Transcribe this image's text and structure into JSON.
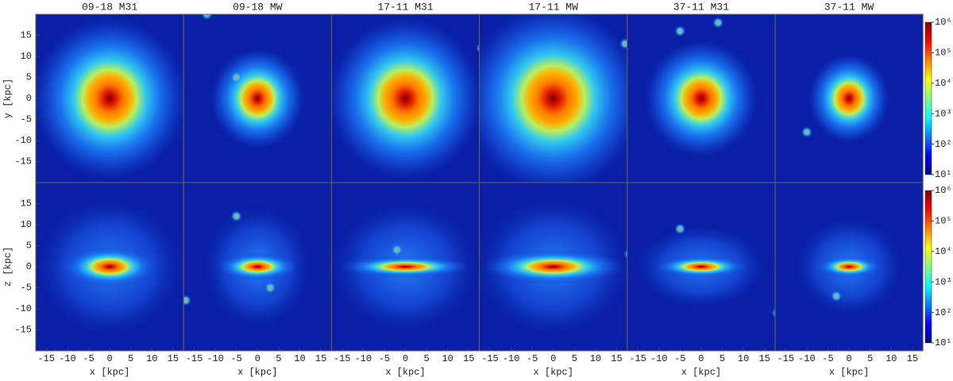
{
  "chart_data": {
    "type": "image",
    "colormap": "jet",
    "titles": [
      "09-18 M31",
      "09-18 MW",
      "17-11 M31",
      "17-11 MW",
      "37-11 M31",
      "37-11 MW"
    ],
    "xlabel": "x [kpc]",
    "ylabels": [
      "y [kpc]",
      "z [kpc]"
    ],
    "xlim": [
      -17.5,
      17.5
    ],
    "ylim": [
      -20,
      20
    ],
    "xticks": [
      -15,
      -10,
      -5,
      0,
      5,
      10,
      15
    ],
    "yticks": [
      -15,
      -10,
      -5,
      0,
      5,
      10,
      15
    ],
    "colorbar": {
      "log": true,
      "lim": [
        10,
        1000000
      ],
      "ticks": [
        {
          "value": 10,
          "label": "10¹"
        },
        {
          "value": 100,
          "label": "10²"
        },
        {
          "value": 1000,
          "label": "10³"
        },
        {
          "value": 10000,
          "label": "10⁴"
        },
        {
          "value": 100000,
          "label": "10⁵"
        },
        {
          "value": 1000000,
          "label": "10⁶"
        }
      ]
    }
  }
}
